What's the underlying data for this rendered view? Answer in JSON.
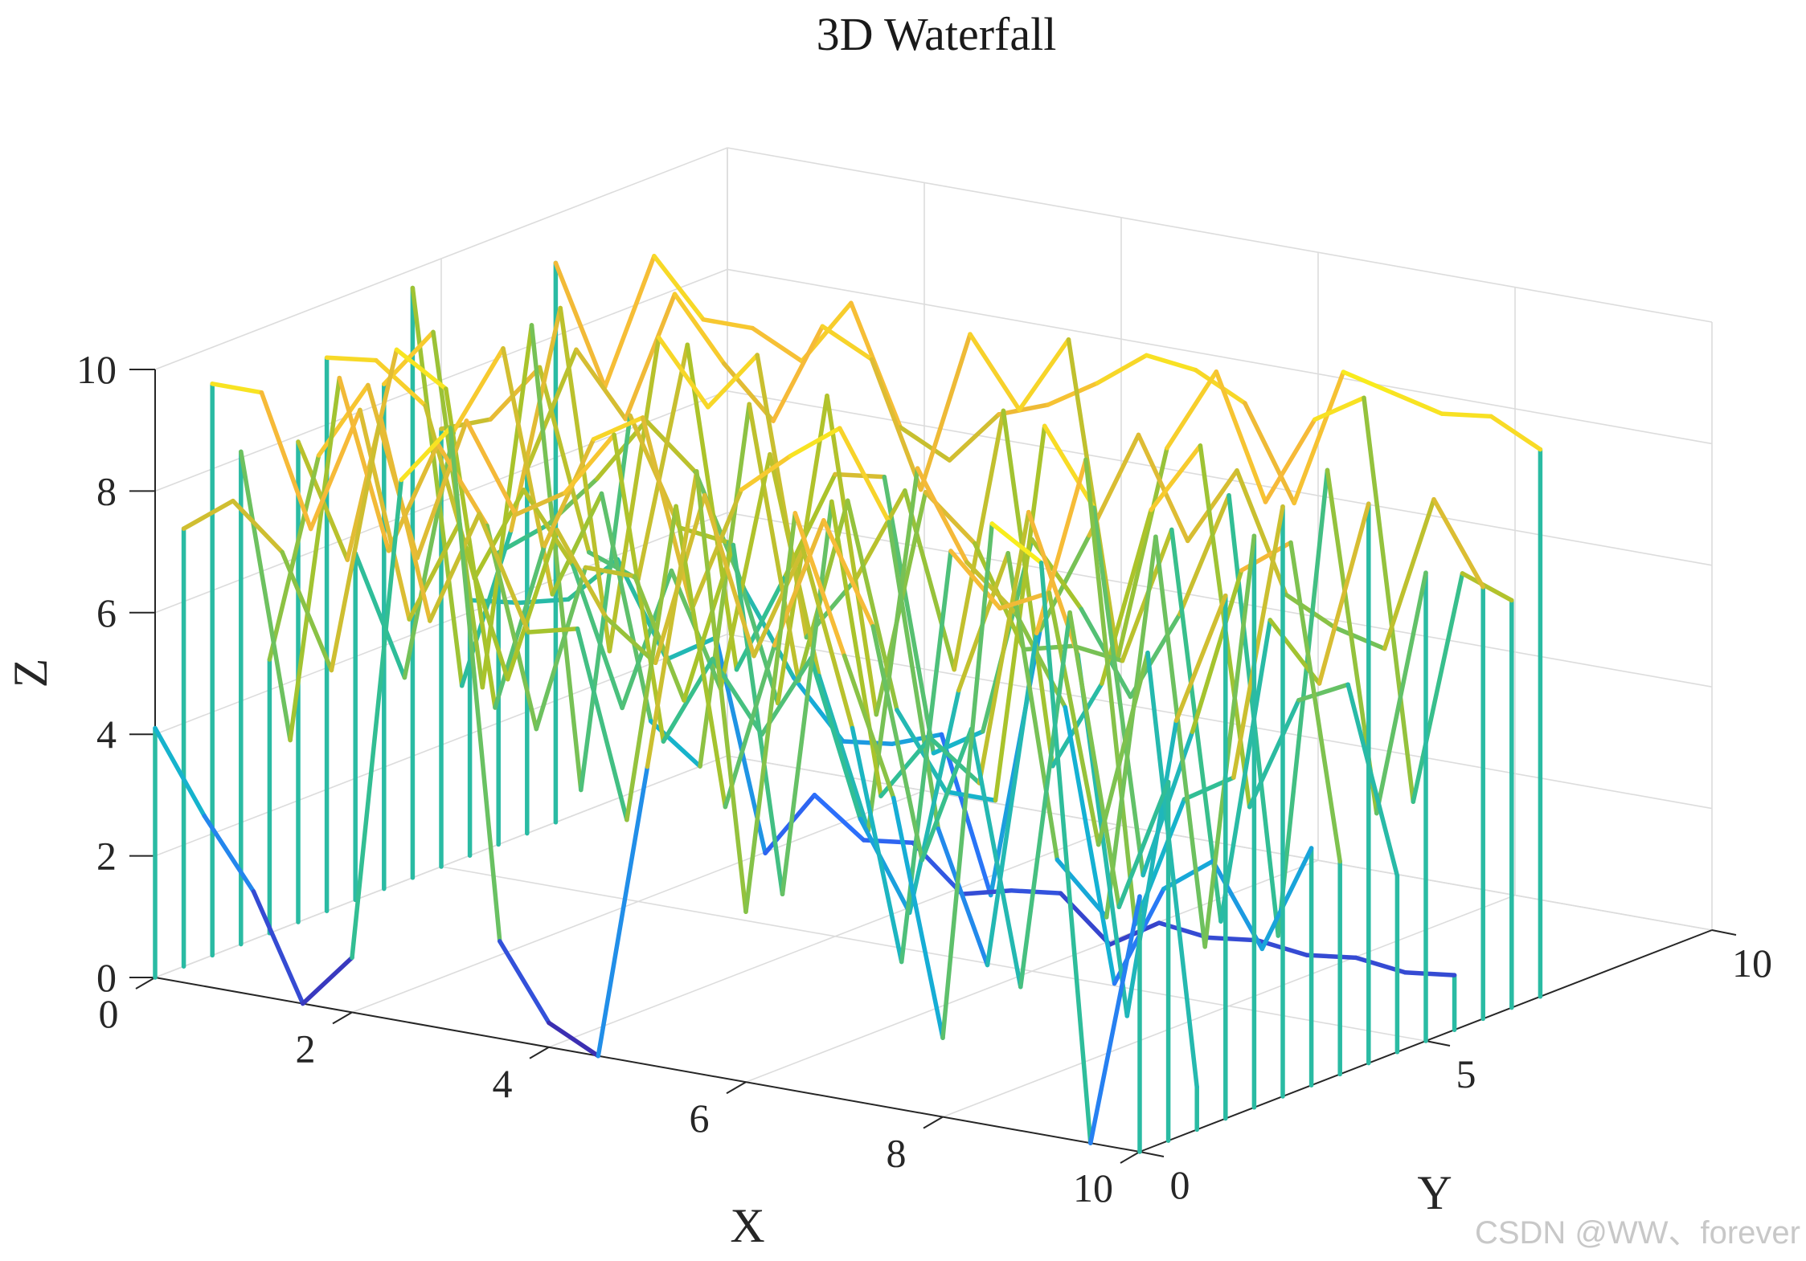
{
  "chart_data": {
    "type": "line",
    "subtype": "3d-waterfall",
    "title": "3D Waterfall",
    "xlabel": "X",
    "ylabel": "Y",
    "zlabel": "Z",
    "xlim": [
      0,
      10
    ],
    "ylim": [
      0,
      10
    ],
    "zlim": [
      0,
      10
    ],
    "x_ticks": [
      "0",
      "2",
      "4",
      "6",
      "8",
      "10"
    ],
    "y_ticks": [
      "0",
      "5",
      "10"
    ],
    "z_ticks": [
      "0",
      "2",
      "4",
      "6",
      "8",
      "10"
    ],
    "grid": true,
    "colormap": "parula",
    "colormap_colors": [
      "#3e26a8",
      "#2c6efc",
      "#14b2d2",
      "#34bf8f",
      "#aac32a",
      "#f6b938",
      "#f9fb15"
    ],
    "x": [
      0,
      0.5,
      1,
      1.5,
      2,
      2.5,
      3,
      3.5,
      4,
      4.5,
      5,
      5.5,
      6,
      6.5,
      7,
      7.5,
      8,
      8.5,
      9,
      9.5,
      10
    ],
    "series": [
      {
        "y": 0,
        "z": [
          4.1,
          2.8,
          1.7,
          0.0,
          0.9,
          8.9,
          9.9,
          1.6,
          0.4,
          0.0,
          4.9,
          9.9,
          2.8,
          9.5,
          7.3,
          5.1,
          1.3,
          9.9,
          9.4,
          0.0,
          4.2
        ]
      },
      {
        "y": 0.5,
        "z": [
          7.2,
          7.8,
          7.1,
          5.3,
          9.6,
          6.4,
          8.3,
          6.5,
          6.7,
          3.7,
          9.0,
          4.2,
          7.0,
          9.2,
          7.6,
          3.9,
          6.2,
          2.1,
          8.4,
          3.7,
          5.9
        ]
      },
      {
        "y": 1,
        "z": [
          9.4,
          9.4,
          7.3,
          9.4,
          6.1,
          7.8,
          5.4,
          8.0,
          6.7,
          6.1,
          9.0,
          6.5,
          8.4,
          5.6,
          1.9,
          8.8,
          8.0,
          8.4,
          4.4,
          7.7,
          0.7
        ]
      },
      {
        "y": 1.5,
        "z": [
          8.1,
          3.5,
          9.6,
          6.9,
          8.8,
          7.6,
          4.4,
          7.2,
          7.2,
          5.3,
          8.0,
          2.4,
          9.0,
          4.3,
          5.4,
          4.8,
          9.4,
          7.2,
          1.4,
          6.4,
          8.6
        ]
      },
      {
        "y": 2,
        "z": [
          4.5,
          8.0,
          9.3,
          6.6,
          9.0,
          7.6,
          8.1,
          9.2,
          4.3,
          5.8,
          4.7,
          6.1,
          3.6,
          2.2,
          6.0,
          8.4,
          3.5,
          2.7,
          9.1,
          2.5,
          9.4
        ]
      },
      {
        "y": 2.5,
        "z": [
          7.9,
          6.1,
          9.7,
          9.2,
          4.1,
          6.9,
          8.8,
          9.3,
          6.3,
          8.4,
          9.1,
          9.7,
          8.3,
          3.4,
          1.3,
          6.9,
          9.9,
          2.4,
          4.6,
          5.1,
          9.7
        ]
      },
      {
        "y": 3,
        "z": [
          9.1,
          9.2,
          8.6,
          5.9,
          7.5,
          6.4,
          4.2,
          6.6,
          4.8,
          8.8,
          5.3,
          2.9,
          9.0,
          7.6,
          6.9,
          5.5,
          1.1,
          2.8,
          3.4,
          2.1,
          3.9
        ]
      },
      {
        "y": 3.5,
        "z": [
          5.7,
          3.8,
          8.0,
          9.5,
          5.6,
          7.4,
          3.8,
          3.2,
          9.3,
          4.9,
          8.0,
          4.7,
          3.5,
          3.5,
          9.8,
          8.6,
          2.7,
          5.2,
          8.0,
          8.6,
          3.5
        ]
      },
      {
        "y": 4,
        "z": [
          8.3,
          9.3,
          3.6,
          9.7,
          2.2,
          8.5,
          6.8,
          6.7,
          4.2,
          9.4,
          4.3,
          8.1,
          7.4,
          5.8,
          6.0,
          5.9,
          8.2,
          1.9,
          7.0,
          6.1,
          9.2
        ]
      },
      {
        "y": 4.5,
        "z": [
          9.7,
          3.3,
          6.0,
          9.8,
          4.3,
          9.6,
          8.6,
          9.6,
          5.1,
          6.2,
          7.8,
          5.0,
          9.4,
          3.7,
          5.2,
          8.2,
          9.4,
          3.6,
          5.5,
          5.9,
          2.9
        ]
      },
      {
        "y": 5,
        "z": [
          7.2,
          7.5,
          8.5,
          5.6,
          5.3,
          9.3,
          4.1,
          5.8,
          7.6,
          7.7,
          3.3,
          3.8,
          7.1,
          6.1,
          4.8,
          6.3,
          8.4,
          1.3,
          9.1,
          3.6,
          7.7
        ]
      },
      {
        "y": 5.5,
        "z": [
          4.2,
          4.3,
          4.5,
          5.3,
          3.8,
          4.3,
          0.9,
          2.0,
          1.4,
          1.5,
          0.8,
          1.0,
          1.1,
          0.4,
          0.9,
          0.8,
          0.9,
          0.8,
          0.9,
          0.8,
          0.9
        ]
      },
      {
        "y": 6,
        "z": [
          4.8,
          5.4,
          6.3,
          7.4,
          6.7,
          4.9,
          3.6,
          2.7,
          2.8,
          3.1,
          0.6,
          5.1,
          6.8,
          8.6,
          7.0,
          8.3,
          6.4,
          6.0,
          5.8,
          8.4,
          7.1
        ]
      },
      {
        "y": 6.5,
        "z": [
          6.0,
          8.1,
          7.1,
          9.3,
          8.3,
          7.5,
          9.2,
          8.8,
          6.8,
          9.5,
          8.4,
          9.7,
          4.6,
          8.2,
          9.6,
          7.6,
          9.1,
          9.6,
          3.1,
          7.0,
          6.7
        ]
      },
      {
        "y": 7,
        "z": [
          9.2,
          7.3,
          9.6,
          8.7,
          8.7,
          8.3,
          9.4,
          7.5,
          7.1,
          8.0,
          8.3,
          8.8,
          9.4,
          9.3,
          8.9,
          7.4,
          9.7,
          9.5,
          9.3,
          9.4,
          9.0
        ]
      }
    ]
  },
  "watermark": "CSDN @WW、forever"
}
